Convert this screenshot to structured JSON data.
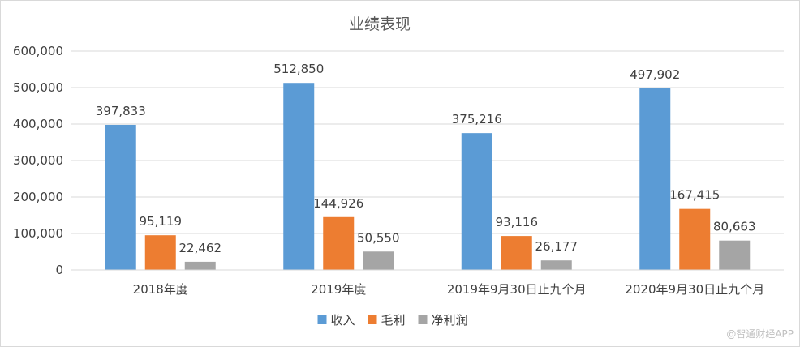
{
  "chart_data": {
    "type": "bar",
    "title": "业绩表现",
    "categories": [
      "2018年度",
      "2019年度",
      "2019年9月30日止九个月",
      "2020年9月30日止九个月"
    ],
    "series": [
      {
        "name": "收入",
        "color": "#5b9bd5",
        "values": [
          397833,
          512850,
          375216,
          497902
        ],
        "labels": [
          "397,833",
          "512,850",
          "375,216",
          "497,902"
        ]
      },
      {
        "name": "毛利",
        "color": "#ed7d31",
        "values": [
          95119,
          144926,
          93116,
          167415
        ],
        "labels": [
          "95,119",
          "144,926",
          "93,116",
          "167,415"
        ]
      },
      {
        "name": "净利润",
        "color": "#a5a5a5",
        "values": [
          22462,
          50550,
          26177,
          80663
        ],
        "labels": [
          "22,462",
          "50,550",
          "26,177",
          "80,663"
        ]
      }
    ],
    "ylim": [
      0,
      600000
    ],
    "yticks": [
      0,
      100000,
      200000,
      300000,
      400000,
      500000,
      600000
    ],
    "ytick_labels": [
      "0",
      "100,000",
      "200,000",
      "300,000",
      "400,000",
      "500,000",
      "600,000"
    ],
    "grid": true,
    "legend_position": "bottom"
  },
  "watermark": "@智通财经APP"
}
